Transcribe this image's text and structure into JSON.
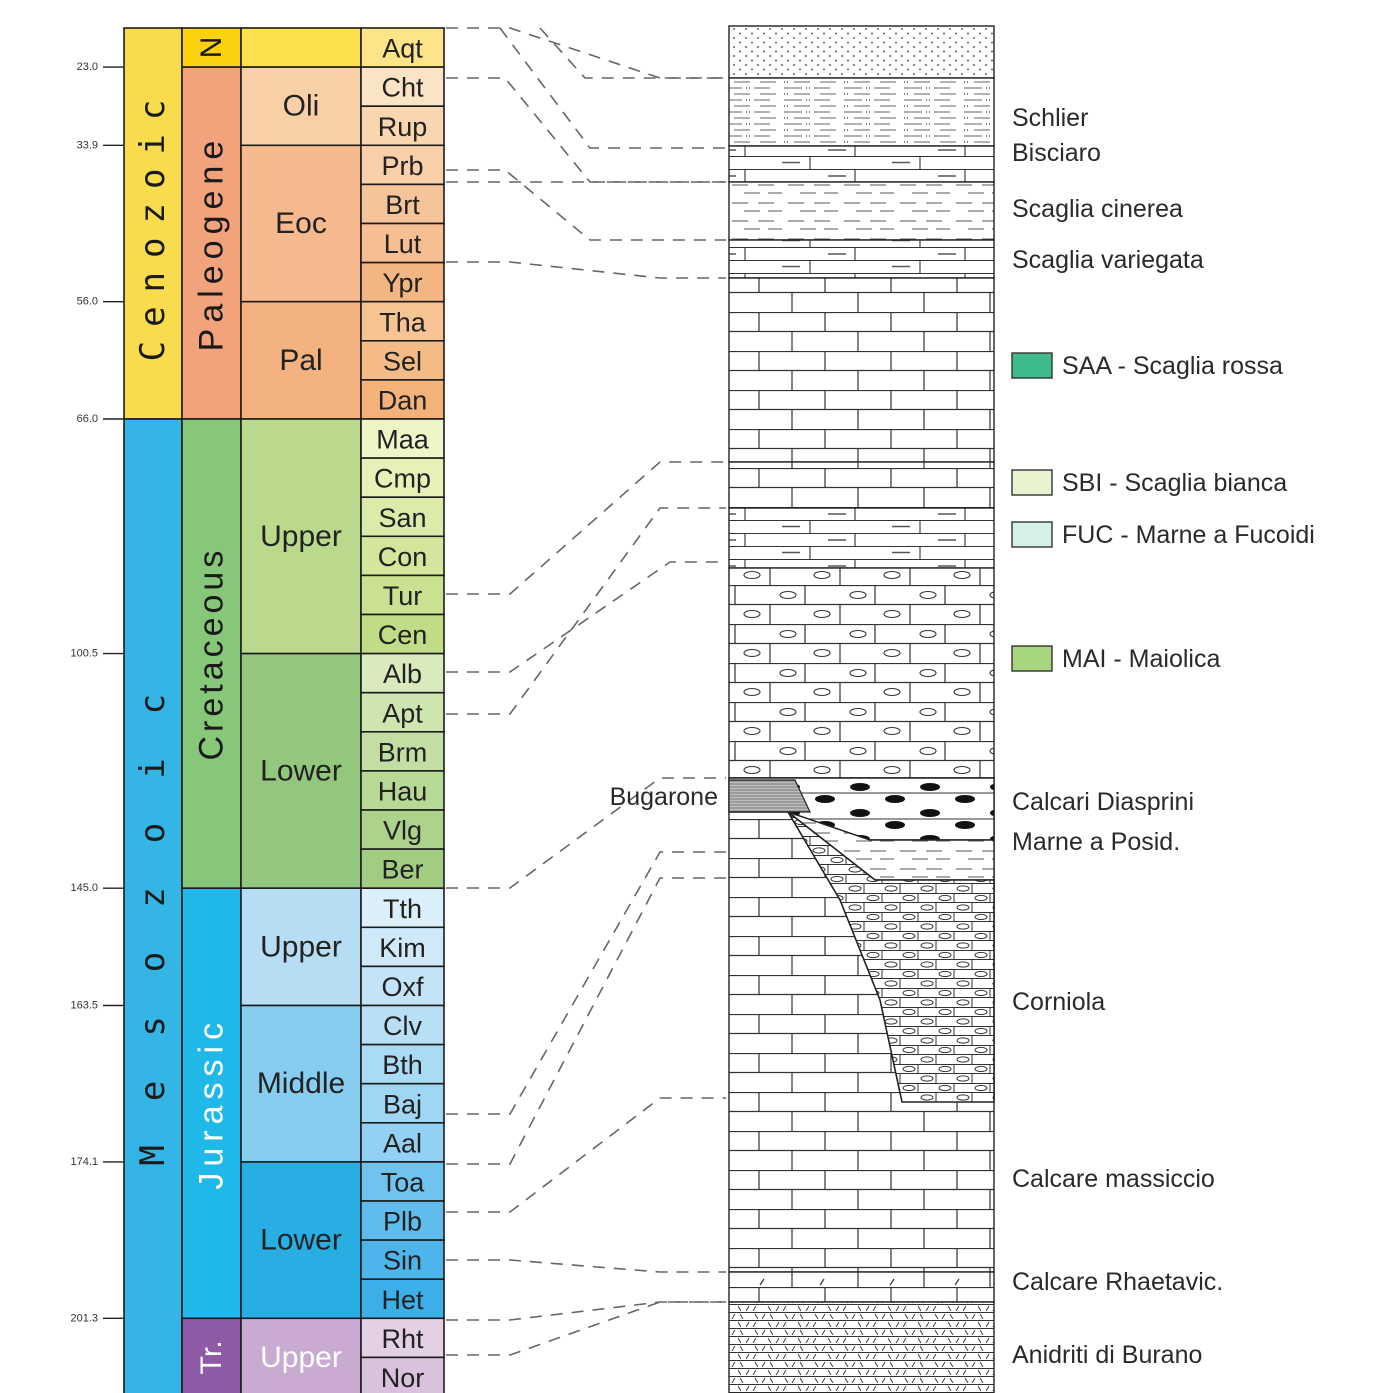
{
  "eras": [
    {
      "label": "Cenozoic",
      "from": 0,
      "to": 10,
      "color": "#f9dc4e"
    },
    {
      "label": "Mesozoic",
      "from": 10,
      "to": 35,
      "color": "#35b4e6"
    }
  ],
  "periods": [
    {
      "label": "N",
      "from": 0,
      "to": 1,
      "color": "#fcd20f"
    },
    {
      "label": "Paleogene",
      "from": 1,
      "to": 10,
      "color": "#f2a37b"
    },
    {
      "label": "Cretaceous",
      "from": 10,
      "to": 22,
      "color": "#87c77a"
    },
    {
      "label": "Jurassic",
      "from": 22,
      "to": 33,
      "color": "#1fb8e9"
    },
    {
      "label": "Tr.",
      "from": 33,
      "to": 35,
      "color": "#8f5aa5"
    }
  ],
  "epochs": [
    {
      "label": "",
      "from": 0,
      "to": 1,
      "color": "#fce04c"
    },
    {
      "label": "Oli",
      "from": 1,
      "to": 3,
      "color": "#f8cfa6"
    },
    {
      "label": "Eoc",
      "from": 3,
      "to": 7,
      "color": "#f5b98d"
    },
    {
      "label": "Pal",
      "from": 7,
      "to": 10,
      "color": "#f4b281"
    },
    {
      "label": "Upper",
      "from": 10,
      "to": 16,
      "color": "#bad98c"
    },
    {
      "label": "Lower",
      "from": 16,
      "to": 22,
      "color": "#93c77d"
    },
    {
      "label": "Upper",
      "from": 22,
      "to": 25,
      "color": "#b6ddf4"
    },
    {
      "label": "Middle",
      "from": 25,
      "to": 29,
      "color": "#86cdf0"
    },
    {
      "label": "Lower",
      "from": 29,
      "to": 33,
      "color": "#28aee3"
    },
    {
      "label": "Upper",
      "from": 33,
      "to": 35,
      "color": "#c9aad1"
    }
  ],
  "stages": [
    {
      "label": "Aqt",
      "color": "#fde488"
    },
    {
      "label": "Cht",
      "color": "#fbe3c5"
    },
    {
      "label": "Rup",
      "color": "#f9d6b0"
    },
    {
      "label": "Prb",
      "color": "#f8cfa8"
    },
    {
      "label": "Brt",
      "color": "#f6c49a"
    },
    {
      "label": "Lut",
      "color": "#f5bf91"
    },
    {
      "label": "Ypr",
      "color": "#f3b582"
    },
    {
      "label": "Tha",
      "color": "#f6c492"
    },
    {
      "label": "Sel",
      "color": "#f4bb85"
    },
    {
      "label": "Dan",
      "color": "#f2b27a"
    },
    {
      "label": "Maa",
      "color": "#eef5c6"
    },
    {
      "label": "Cmp",
      "color": "#e6f0b7"
    },
    {
      "label": "San",
      "color": "#dcebaa"
    },
    {
      "label": "Con",
      "color": "#d3e69c"
    },
    {
      "label": "Tur",
      "color": "#c9e190"
    },
    {
      "label": "Cen",
      "color": "#c0dc86"
    },
    {
      "label": "Alb",
      "color": "#d9ebbd"
    },
    {
      "label": "Apt",
      "color": "#cfe5b0"
    },
    {
      "label": "Brm",
      "color": "#c3dea2"
    },
    {
      "label": "Hau",
      "color": "#b8d896"
    },
    {
      "label": "Vlg",
      "color": "#add28b"
    },
    {
      "label": "Ber",
      "color": "#a2cd81"
    },
    {
      "label": "Tth",
      "color": "#dbeffa"
    },
    {
      "label": "Kim",
      "color": "#cfe9f8"
    },
    {
      "label": "Oxf",
      "color": "#c3e4f6"
    },
    {
      "label": "Clv",
      "color": "#b7e0f6"
    },
    {
      "label": "Bth",
      "color": "#aadbf5"
    },
    {
      "label": "Baj",
      "color": "#9ed6f4"
    },
    {
      "label": "Aal",
      "color": "#92d1f3"
    },
    {
      "label": "Toa",
      "color": "#6fc3ee"
    },
    {
      "label": "Plb",
      "color": "#5fbcec"
    },
    {
      "label": "Sin",
      "color": "#4eb5ea"
    },
    {
      "label": "Het",
      "color": "#3caee8"
    },
    {
      "label": "Rht",
      "color": "#e3d0e5"
    },
    {
      "label": "Nor",
      "color": "#d9c2dc"
    }
  ],
  "ages": [
    {
      "label": "23.0",
      "at": 1
    },
    {
      "label": "33.9",
      "at": 3
    },
    {
      "label": "56.0",
      "at": 7
    },
    {
      "label": "66.0",
      "at": 10
    },
    {
      "label": "100.5",
      "at": 16
    },
    {
      "label": "145.0",
      "at": 22
    },
    {
      "label": "163.5",
      "at": 25
    },
    {
      "label": "174.1",
      "at": 29
    },
    {
      "label": "201.3",
      "at": 33
    }
  ],
  "formations": [
    {
      "label": "Schlier"
    },
    {
      "label": "Bisciaro"
    },
    {
      "label": "Scaglia cinerea"
    },
    {
      "label": "Scaglia variegata"
    },
    {
      "label": "SAA - Scaglia rossa",
      "swatch": "#3dbb8a"
    },
    {
      "label": "SBI - Scaglia bianca",
      "swatch": "#e8f2cf"
    },
    {
      "label": "FUC - Marne a Fucoidi",
      "swatch": "#d7f0e9"
    },
    {
      "label": "MAI - Maiolica",
      "swatch": "#a7d67e"
    },
    {
      "label": "Calcari Diasprini"
    },
    {
      "label": "Marne a Posid."
    },
    {
      "label": "Corniola"
    },
    {
      "label": "Calcare massiccio"
    },
    {
      "label": "Calcare Rhaetavic."
    },
    {
      "label": "Anidriti di Burano"
    }
  ],
  "bugarone_label": "Bugarone"
}
